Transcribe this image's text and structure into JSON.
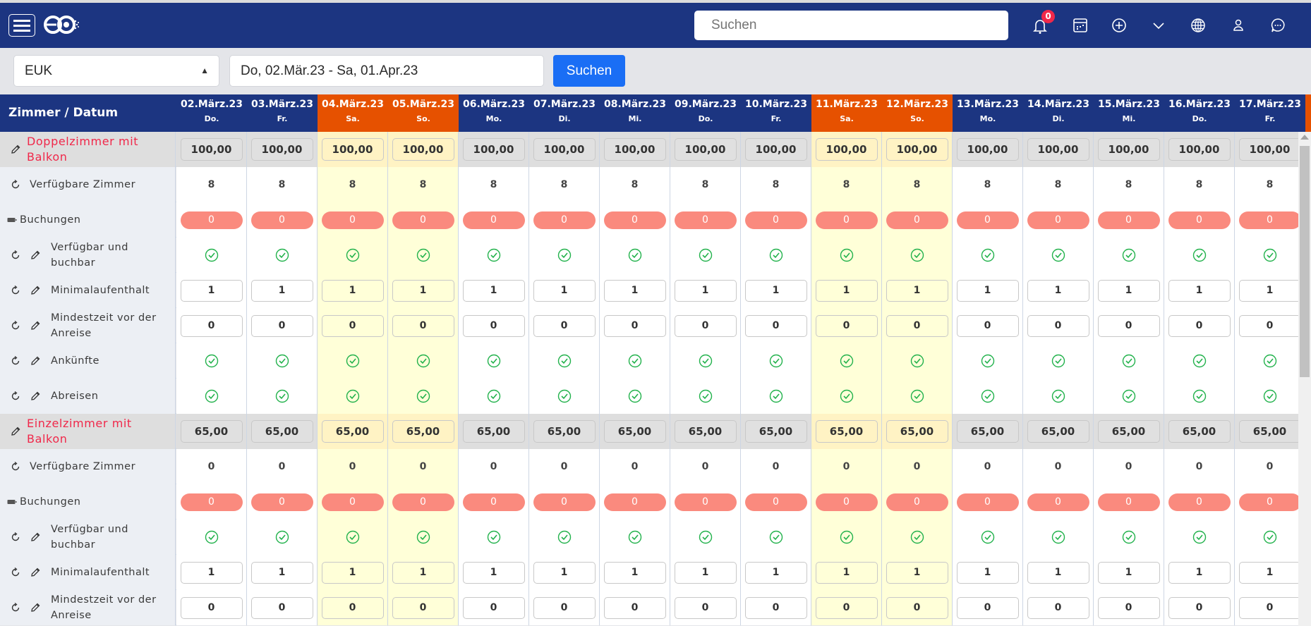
{
  "header": {
    "search_placeholder": "Suchen",
    "notification_count": "0",
    "icons": [
      "menu-icon",
      "logo",
      "bell-icon",
      "calendar-icon",
      "plus-circle-icon",
      "chevron-down-icon",
      "globe-icon",
      "user-icon",
      "chat-icon"
    ]
  },
  "toolbar": {
    "property": "EUK",
    "date_range": "Do, 02.Mär.23 - Sa, 01.Apr.23",
    "search_label": "Suchen"
  },
  "table": {
    "corner_label": "Zimmer / Datum",
    "columns": [
      {
        "date": "02.März.23",
        "day": "Do.",
        "weekend": false
      },
      {
        "date": "03.März.23",
        "day": "Fr.",
        "weekend": false
      },
      {
        "date": "04.März.23",
        "day": "Sa.",
        "weekend": true
      },
      {
        "date": "05.März.23",
        "day": "So.",
        "weekend": true
      },
      {
        "date": "06.März.23",
        "day": "Mo.",
        "weekend": false
      },
      {
        "date": "07.März.23",
        "day": "Di.",
        "weekend": false
      },
      {
        "date": "08.März.23",
        "day": "Mi.",
        "weekend": false
      },
      {
        "date": "09.März.23",
        "day": "Do.",
        "weekend": false
      },
      {
        "date": "10.März.23",
        "day": "Fr.",
        "weekend": false
      },
      {
        "date": "11.März.23",
        "day": "Sa.",
        "weekend": true
      },
      {
        "date": "12.März.23",
        "day": "So.",
        "weekend": true
      },
      {
        "date": "13.März.23",
        "day": "Mo.",
        "weekend": false
      },
      {
        "date": "14.März.23",
        "day": "Di.",
        "weekend": false
      },
      {
        "date": "15.März.23",
        "day": "Mi.",
        "weekend": false
      },
      {
        "date": "16.März.23",
        "day": "Do.",
        "weekend": false
      },
      {
        "date": "17.März.23",
        "day": "Fr.",
        "weekend": false
      }
    ],
    "rooms": [
      {
        "name": "Doppelzimmer mit Balkon",
        "price": "100,00",
        "rows": [
          {
            "label": "Verfügbare Zimmer",
            "type": "text",
            "value": "8",
            "icons": [
              "refresh"
            ]
          },
          {
            "label": "Buchungen",
            "type": "pill",
            "value": "0",
            "icons": [
              "battery"
            ]
          },
          {
            "label": "Verfügbar und buchbar",
            "type": "check",
            "value": "true",
            "icons": [
              "refresh",
              "pencil"
            ]
          },
          {
            "label": "Minimalaufenthalt",
            "type": "input",
            "value": "1",
            "icons": [
              "refresh",
              "pencil"
            ]
          },
          {
            "label": "Mindestzeit vor der Anreise",
            "type": "input",
            "value": "0",
            "icons": [
              "refresh",
              "pencil"
            ]
          },
          {
            "label": "Ankünfte",
            "type": "check",
            "value": "true",
            "icons": [
              "refresh",
              "pencil"
            ]
          },
          {
            "label": "Abreisen",
            "type": "check",
            "value": "true",
            "icons": [
              "refresh",
              "pencil"
            ]
          }
        ]
      },
      {
        "name": "Einzelzimmer mit Balkon",
        "price": "65,00",
        "rows": [
          {
            "label": "Verfügbare Zimmer",
            "type": "text",
            "value": "0",
            "icons": [
              "refresh"
            ]
          },
          {
            "label": "Buchungen",
            "type": "pill",
            "value": "0",
            "icons": [
              "battery"
            ]
          },
          {
            "label": "Verfügbar und buchbar",
            "type": "check",
            "value": "true",
            "icons": [
              "refresh",
              "pencil"
            ]
          },
          {
            "label": "Minimalaufenthalt",
            "type": "input",
            "value": "1",
            "icons": [
              "refresh",
              "pencil"
            ]
          },
          {
            "label": "Mindestzeit vor der Anreise",
            "type": "input",
            "value": "0",
            "icons": [
              "refresh",
              "pencil"
            ]
          }
        ]
      }
    ]
  },
  "colors": {
    "header": "#1c3581",
    "weekend_header": "#e65100",
    "weekend_cell": "#ffffd8",
    "room_name": "#f0284a",
    "booking_pill": "#fa8a7e",
    "check": "#22b24c",
    "primary_button": "#1a6ef5"
  }
}
